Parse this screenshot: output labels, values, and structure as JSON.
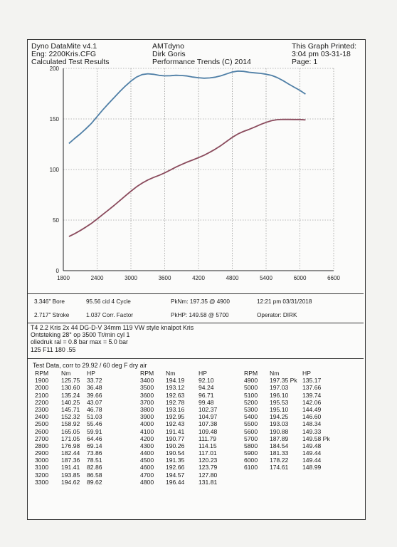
{
  "header": {
    "left": [
      "Dyno DataMite v4.1",
      "Eng: 2200Kris.CFG",
      "Calculated Test Results"
    ],
    "center": [
      "AMTdyno",
      "Dirk Goris",
      "Performance Trends (C) 2014"
    ],
    "right": [
      "This Graph Printed:",
      "3:04 pm 03-31-18",
      "Page: 1"
    ]
  },
  "chart_data": {
    "type": "line",
    "x_ticks": [
      "1800",
      "2400",
      "3000",
      "3600",
      "4200",
      "4800",
      "5400",
      "6000",
      "6600"
    ],
    "y_ticks": [
      "0",
      "50",
      "100",
      "150",
      "200"
    ],
    "xlim": [
      1800,
      6600
    ],
    "ylim": [
      0,
      200
    ],
    "grid": true,
    "x": [
      1900,
      2000,
      2100,
      2200,
      2300,
      2400,
      2500,
      2600,
      2700,
      2800,
      2900,
      3000,
      3100,
      3200,
      3300,
      3400,
      3500,
      3600,
      3700,
      3800,
      3900,
      4000,
      4100,
      4200,
      4300,
      4400,
      4500,
      4600,
      4700,
      4800,
      4900,
      5000,
      5100,
      5200,
      5300,
      5400,
      5500,
      5600,
      5700,
      5800,
      5900,
      6000,
      6100
    ],
    "series": [
      {
        "color": "#4f7fa6",
        "values": [
          125.75,
          130.6,
          135.24,
          140.25,
          145.71,
          152.32,
          158.92,
          165.05,
          171.05,
          176.98,
          182.44,
          187.36,
          191.41,
          193.85,
          194.62,
          194.19,
          193.12,
          192.63,
          192.78,
          193.16,
          192.95,
          192.43,
          191.41,
          190.77,
          190.26,
          190.54,
          191.35,
          192.66,
          194.57,
          196.44,
          197.35,
          197.03,
          196.1,
          195.53,
          195.1,
          194.25,
          193.03,
          190.88,
          187.89,
          184.54,
          181.33,
          178.22,
          174.61
        ]
      },
      {
        "color": "#8a4a5c",
        "values": [
          33.72,
          36.48,
          39.66,
          43.07,
          46.78,
          51.03,
          55.46,
          59.91,
          64.46,
          69.14,
          73.86,
          78.51,
          82.86,
          86.58,
          89.62,
          92.1,
          94.24,
          96.71,
          99.48,
          102.37,
          104.97,
          107.38,
          109.48,
          111.79,
          114.15,
          117.01,
          120.23,
          123.79,
          127.8,
          131.81,
          135.17,
          137.66,
          139.74,
          142.06,
          144.49,
          146.6,
          148.34,
          149.33,
          149.58,
          149.48,
          149.44,
          149.44,
          148.99
        ]
      }
    ]
  },
  "specs": {
    "r1": [
      "3.346\" Bore",
      "95.56 cid  4 Cycle",
      "PkNm: 197.35 @  4900",
      "12:21 pm  03/31/2018"
    ],
    "r2": [
      "2.717\" Stroke",
      "1.037 Corr. Factor",
      "PkHP: 149.58 @  5700",
      "Operator: DIRK"
    ]
  },
  "notes": [
    "T4 2.2  Kris 2x 44 DG-D-V  34mm  119  VW style knalpot Kris",
    "Ontsteking  28° op 3500 Tr/min cyl 1",
    "oliedruk ral = 0.8 bar  max = 5.0 bar",
    " 125  F11 180  .55"
  ],
  "table": {
    "caption": "Test Data, corr to 29.92 / 60 deg F dry air",
    "headers": [
      "RPM",
      "Nm",
      "HP"
    ],
    "blocks": [
      {
        "rpm": [
          "1900",
          "2000",
          "2100",
          "2200",
          "2300",
          "2400",
          "2500",
          "2600",
          "2700",
          "2800",
          "2900",
          "3000",
          "3100",
          "3200",
          "3300"
        ],
        "nm": [
          "125.75",
          "130.60",
          "135.24",
          "140.25",
          "145.71",
          "152.32",
          "158.92",
          "165.05",
          "171.05",
          "176.98",
          "182.44",
          "187.36",
          "191.41",
          "193.85",
          "194.62"
        ],
        "hp": [
          "33.72",
          "36.48",
          "39.66",
          "43.07",
          "46.78",
          "51.03",
          "55.46",
          "59.91",
          "64.46",
          "69.14",
          "73.86",
          "78.51",
          "82.86",
          "86.58",
          "89.62"
        ]
      },
      {
        "rpm": [
          "3400",
          "3500",
          "3600",
          "3700",
          "3800",
          "3900",
          "4000",
          "4100",
          "4200",
          "4300",
          "4400",
          "4500",
          "4600",
          "4700",
          "4800"
        ],
        "nm": [
          "194.19",
          "193.12",
          "192.63",
          "192.78",
          "193.16",
          "192.95",
          "192.43",
          "191.41",
          "190.77",
          "190.26",
          "190.54",
          "191.35",
          "192.66",
          "194.57",
          "196.44"
        ],
        "hp": [
          "92.10",
          "94.24",
          "96.71",
          "99.48",
          "102.37",
          "104.97",
          "107.38",
          "109.48",
          "111.79",
          "114.15",
          "117.01",
          "120.23",
          "123.79",
          "127.80",
          "131.81"
        ]
      },
      {
        "rpm": [
          "4900",
          "5000",
          "5100",
          "5200",
          "5300",
          "5400",
          "5500",
          "5600",
          "5700",
          "5800",
          "5900",
          "6000",
          "6100"
        ],
        "nm": [
          "197.35 Pk",
          "197.03",
          "196.10",
          "195.53",
          "195.10",
          "194.25",
          "193.03",
          "190.88",
          "187.89",
          "184.54",
          "181.33",
          "178.22",
          "174.61"
        ],
        "hp": [
          "135.17",
          "137.66",
          "139.74",
          "142.06",
          "144.49",
          "146.60",
          "148.34",
          "149.33",
          "149.58 Pk",
          "149.48",
          "149.44",
          "149.44",
          "148.99"
        ]
      }
    ]
  }
}
